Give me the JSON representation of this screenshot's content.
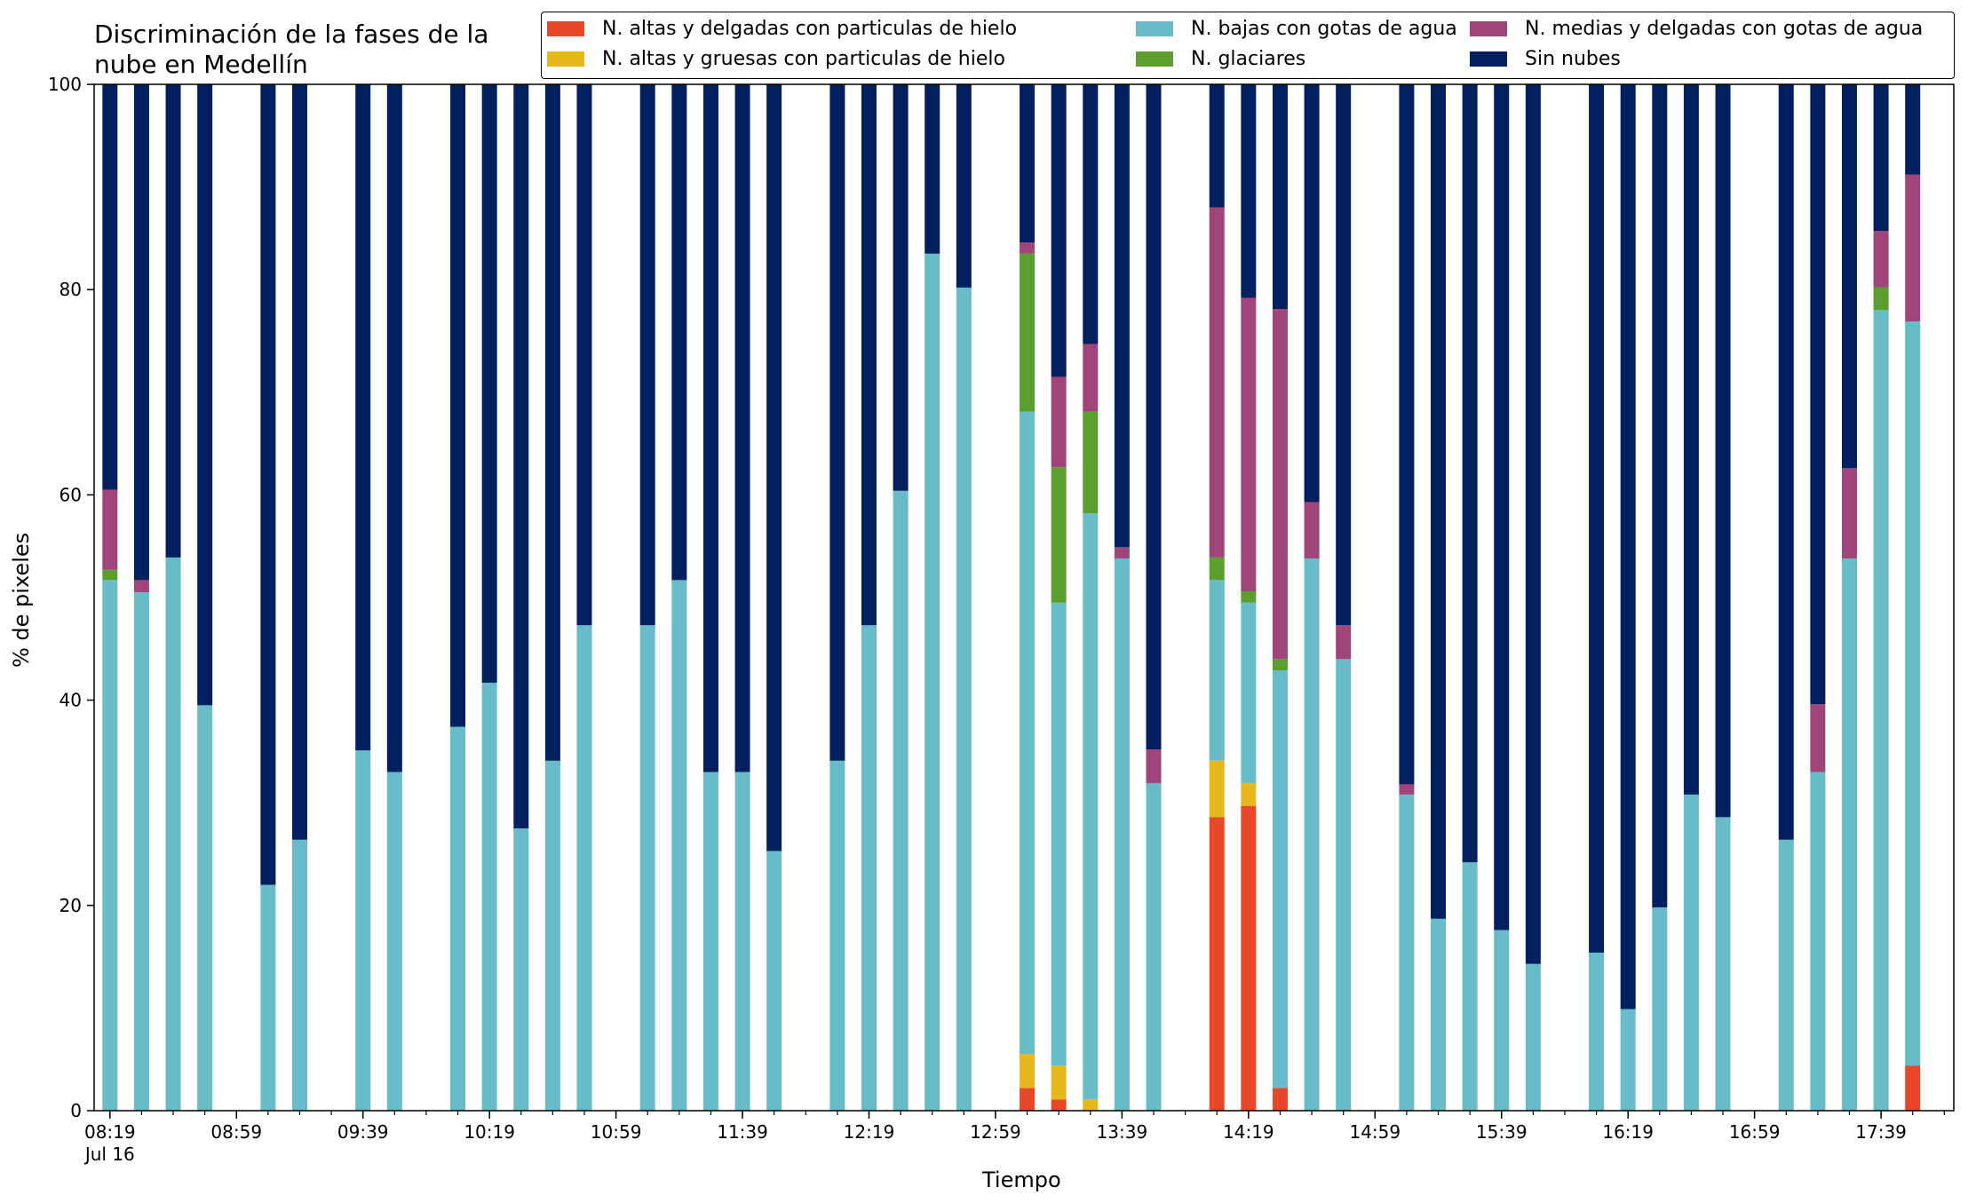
{
  "chart_data": {
    "type": "bar",
    "stacked": true,
    "title": "Discriminación de la fases de la nube en Medellín",
    "title_lines": [
      "Discriminación de la fases de la",
      "nube en Medellín"
    ],
    "xlabel": "Tiempo",
    "ylabel": "% de pixeles",
    "ylim": [
      0,
      100
    ],
    "yticks": [
      "0",
      "20",
      "40",
      "60",
      "80",
      "100"
    ],
    "xticks": [
      "08:19",
      "08:59",
      "09:39",
      "10:19",
      "10:59",
      "11:39",
      "12:19",
      "12:59",
      "13:39",
      "14:19",
      "14:59",
      "15:39",
      "16:19",
      "16:59",
      "17:39"
    ],
    "xtick_sublabel": "Jul 16",
    "x_start": "08:19",
    "x_end": "18:00",
    "legend_position": "top",
    "legend": [
      "N. altas y delgadas con particulas de hielo",
      "N. bajas con gotas de agua",
      "N. medias y delgadas con gotas de agua",
      "N. altas y gruesas con particulas de hielo",
      "N. glaciares",
      "Sin nubes"
    ],
    "colors": {
      "altas_delgadas": "#e8482a",
      "altas_gruesas": "#e6b81c",
      "bajas": "#67bcc8",
      "glaciares": "#5c9e2e",
      "medias": "#a0457a",
      "sin_nubes": "#021f5f"
    },
    "series_order": [
      "altas_delgadas",
      "altas_gruesas",
      "bajas",
      "glaciares",
      "medias",
      "sin_nubes"
    ],
    "bars": [
      {
        "time": "08:19",
        "altas_delgadas": 0,
        "altas_gruesas": 0,
        "bajas": 51.7,
        "glaciares": 1.0,
        "medias": 7.8,
        "sin_nubes": 39.5
      },
      {
        "time": "08:29",
        "altas_delgadas": 0,
        "altas_gruesas": 0,
        "bajas": 50.5,
        "glaciares": 0,
        "medias": 1.2,
        "sin_nubes": 48.3
      },
      {
        "time": "08:39",
        "altas_delgadas": 0,
        "altas_gruesas": 0,
        "bajas": 53.9,
        "glaciares": 0,
        "medias": 0,
        "sin_nubes": 46.1
      },
      {
        "time": "08:49",
        "altas_delgadas": 0,
        "altas_gruesas": 0,
        "bajas": 39.5,
        "glaciares": 0,
        "medias": 0,
        "sin_nubes": 60.5
      },
      {
        "time": "09:09",
        "altas_delgadas": 0,
        "altas_gruesas": 0,
        "bajas": 22.0,
        "glaciares": 0,
        "medias": 0,
        "sin_nubes": 78.0
      },
      {
        "time": "09:19",
        "altas_delgadas": 0,
        "altas_gruesas": 0,
        "bajas": 26.4,
        "glaciares": 0,
        "medias": 0,
        "sin_nubes": 73.6
      },
      {
        "time": "09:39",
        "altas_delgadas": 0,
        "altas_gruesas": 0,
        "bajas": 35.1,
        "glaciares": 0,
        "medias": 0,
        "sin_nubes": 64.9
      },
      {
        "time": "09:49",
        "altas_delgadas": 0,
        "altas_gruesas": 0,
        "bajas": 33.0,
        "glaciares": 0,
        "medias": 0,
        "sin_nubes": 67.0
      },
      {
        "time": "10:09",
        "altas_delgadas": 0,
        "altas_gruesas": 0,
        "bajas": 37.4,
        "glaciares": 0,
        "medias": 0,
        "sin_nubes": 62.6
      },
      {
        "time": "10:19",
        "altas_delgadas": 0,
        "altas_gruesas": 0,
        "bajas": 41.7,
        "glaciares": 0,
        "medias": 0,
        "sin_nubes": 58.3
      },
      {
        "time": "10:29",
        "altas_delgadas": 0,
        "altas_gruesas": 0,
        "bajas": 27.5,
        "glaciares": 0,
        "medias": 0,
        "sin_nubes": 72.5
      },
      {
        "time": "10:39",
        "altas_delgadas": 0,
        "altas_gruesas": 0,
        "bajas": 34.1,
        "glaciares": 0,
        "medias": 0,
        "sin_nubes": 65.9
      },
      {
        "time": "10:49",
        "altas_delgadas": 0,
        "altas_gruesas": 0,
        "bajas": 47.3,
        "glaciares": 0,
        "medias": 0,
        "sin_nubes": 52.7
      },
      {
        "time": "11:09",
        "altas_delgadas": 0,
        "altas_gruesas": 0,
        "bajas": 47.3,
        "glaciares": 0,
        "medias": 0,
        "sin_nubes": 52.7
      },
      {
        "time": "11:19",
        "altas_delgadas": 0,
        "altas_gruesas": 0,
        "bajas": 51.7,
        "glaciares": 0,
        "medias": 0,
        "sin_nubes": 48.3
      },
      {
        "time": "11:29",
        "altas_delgadas": 0,
        "altas_gruesas": 0,
        "bajas": 33.0,
        "glaciares": 0,
        "medias": 0,
        "sin_nubes": 67.0
      },
      {
        "time": "11:39",
        "altas_delgadas": 0,
        "altas_gruesas": 0,
        "bajas": 33.0,
        "glaciares": 0,
        "medias": 0,
        "sin_nubes": 67.0
      },
      {
        "time": "11:49",
        "altas_delgadas": 0,
        "altas_gruesas": 0,
        "bajas": 25.3,
        "glaciares": 0,
        "medias": 0,
        "sin_nubes": 74.7
      },
      {
        "time": "12:09",
        "altas_delgadas": 0,
        "altas_gruesas": 0,
        "bajas": 34.1,
        "glaciares": 0,
        "medias": 0,
        "sin_nubes": 65.9
      },
      {
        "time": "12:19",
        "altas_delgadas": 0,
        "altas_gruesas": 0,
        "bajas": 47.3,
        "glaciares": 0,
        "medias": 0,
        "sin_nubes": 52.7
      },
      {
        "time": "12:29",
        "altas_delgadas": 0,
        "altas_gruesas": 0,
        "bajas": 60.4,
        "glaciares": 0,
        "medias": 0,
        "sin_nubes": 39.6
      },
      {
        "time": "12:39",
        "altas_delgadas": 0,
        "altas_gruesas": 0,
        "bajas": 83.5,
        "glaciares": 0,
        "medias": 0,
        "sin_nubes": 16.5
      },
      {
        "time": "12:49",
        "altas_delgadas": 0,
        "altas_gruesas": 0,
        "bajas": 80.2,
        "glaciares": 0,
        "medias": 0,
        "sin_nubes": 19.8
      },
      {
        "time": "13:09",
        "altas_delgadas": 2.2,
        "altas_gruesas": 3.3,
        "bajas": 62.6,
        "glaciares": 15.4,
        "medias": 1.1,
        "sin_nubes": 15.4
      },
      {
        "time": "13:19",
        "altas_delgadas": 1.1,
        "altas_gruesas": 3.3,
        "bajas": 45.1,
        "glaciares": 13.2,
        "medias": 8.8,
        "sin_nubes": 28.5
      },
      {
        "time": "13:29",
        "altas_delgadas": 0,
        "altas_gruesas": 1.1,
        "bajas": 57.1,
        "glaciares": 9.9,
        "medias": 6.6,
        "sin_nubes": 25.3
      },
      {
        "time": "13:39",
        "altas_delgadas": 0,
        "altas_gruesas": 0,
        "bajas": 53.8,
        "glaciares": 0,
        "medias": 1.1,
        "sin_nubes": 45.1
      },
      {
        "time": "13:49",
        "altas_delgadas": 0,
        "altas_gruesas": 0,
        "bajas": 31.9,
        "glaciares": 0,
        "medias": 3.3,
        "sin_nubes": 64.8
      },
      {
        "time": "14:09",
        "altas_delgadas": 28.6,
        "altas_gruesas": 5.5,
        "bajas": 17.6,
        "glaciares": 2.2,
        "medias": 34.1,
        "sin_nubes": 12.0
      },
      {
        "time": "14:19",
        "altas_delgadas": 29.7,
        "altas_gruesas": 2.2,
        "bajas": 17.6,
        "glaciares": 1.1,
        "medias": 28.6,
        "sin_nubes": 20.8
      },
      {
        "time": "14:29",
        "altas_delgadas": 2.2,
        "altas_gruesas": 0,
        "bajas": 40.7,
        "glaciares": 1.1,
        "medias": 34.1,
        "sin_nubes": 21.9
      },
      {
        "time": "14:39",
        "altas_delgadas": 0,
        "altas_gruesas": 0,
        "bajas": 53.8,
        "glaciares": 0,
        "medias": 5.5,
        "sin_nubes": 40.7
      },
      {
        "time": "14:49",
        "altas_delgadas": 0,
        "altas_gruesas": 0,
        "bajas": 44.0,
        "glaciares": 0,
        "medias": 3.3,
        "sin_nubes": 52.7
      },
      {
        "time": "15:09",
        "altas_delgadas": 0,
        "altas_gruesas": 0,
        "bajas": 30.8,
        "glaciares": 0,
        "medias": 1.0,
        "sin_nubes": 68.2
      },
      {
        "time": "15:19",
        "altas_delgadas": 0,
        "altas_gruesas": 0,
        "bajas": 18.7,
        "glaciares": 0,
        "medias": 0,
        "sin_nubes": 81.3
      },
      {
        "time": "15:29",
        "altas_delgadas": 0,
        "altas_gruesas": 0,
        "bajas": 24.2,
        "glaciares": 0,
        "medias": 0,
        "sin_nubes": 75.8
      },
      {
        "time": "15:39",
        "altas_delgadas": 0,
        "altas_gruesas": 0,
        "bajas": 17.6,
        "glaciares": 0,
        "medias": 0,
        "sin_nubes": 82.4
      },
      {
        "time": "15:49",
        "altas_delgadas": 0,
        "altas_gruesas": 0,
        "bajas": 14.3,
        "glaciares": 0,
        "medias": 0,
        "sin_nubes": 85.7
      },
      {
        "time": "16:09",
        "altas_delgadas": 0,
        "altas_gruesas": 0,
        "bajas": 15.4,
        "glaciares": 0,
        "medias": 0,
        "sin_nubes": 84.6
      },
      {
        "time": "16:19",
        "altas_delgadas": 0,
        "altas_gruesas": 0,
        "bajas": 9.9,
        "glaciares": 0,
        "medias": 0,
        "sin_nubes": 90.1
      },
      {
        "time": "16:29",
        "altas_delgadas": 0,
        "altas_gruesas": 0,
        "bajas": 19.8,
        "glaciares": 0,
        "medias": 0,
        "sin_nubes": 80.2
      },
      {
        "time": "16:39",
        "altas_delgadas": 0,
        "altas_gruesas": 0,
        "bajas": 30.8,
        "glaciares": 0,
        "medias": 0,
        "sin_nubes": 69.2
      },
      {
        "time": "16:49",
        "altas_delgadas": 0,
        "altas_gruesas": 0,
        "bajas": 28.6,
        "glaciares": 0,
        "medias": 0,
        "sin_nubes": 71.4
      },
      {
        "time": "17:09",
        "altas_delgadas": 0,
        "altas_gruesas": 0,
        "bajas": 26.4,
        "glaciares": 0,
        "medias": 0,
        "sin_nubes": 73.6
      },
      {
        "time": "17:19",
        "altas_delgadas": 0,
        "altas_gruesas": 0,
        "bajas": 33.0,
        "glaciares": 0,
        "medias": 6.6,
        "sin_nubes": 60.4
      },
      {
        "time": "17:29",
        "altas_delgadas": 0,
        "altas_gruesas": 0,
        "bajas": 53.8,
        "glaciares": 0,
        "medias": 8.8,
        "sin_nubes": 37.4
      },
      {
        "time": "17:39",
        "altas_delgadas": 0,
        "altas_gruesas": 0,
        "bajas": 78.0,
        "glaciares": 2.2,
        "medias": 5.5,
        "sin_nubes": 14.3
      },
      {
        "time": "17:49",
        "altas_delgadas": 4.4,
        "altas_gruesas": 0,
        "bajas": 72.5,
        "glaciares": 0,
        "medias": 14.3,
        "sin_nubes": 8.8
      }
    ]
  }
}
